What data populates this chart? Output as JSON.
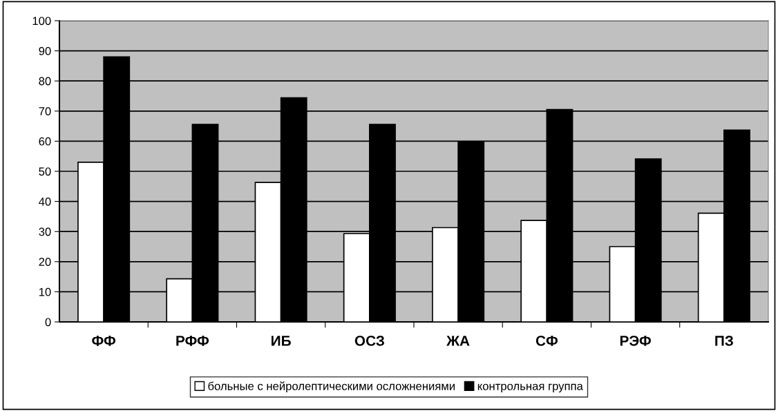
{
  "chart_data": {
    "type": "bar",
    "categories": [
      "ФФ",
      "РФФ",
      "ИБ",
      "ОСЗ",
      "ЖА",
      "СФ",
      "РЭФ",
      "ПЗ"
    ],
    "series": [
      {
        "name": "больные с нейролептическими осложнениями",
        "color": "#ffffff",
        "values": [
          53.0,
          14.3,
          46.3,
          29.3,
          31.3,
          33.7,
          25.0,
          36.1
        ]
      },
      {
        "name": "контрольная группа",
        "color": "#000000",
        "values": [
          88.0,
          65.6,
          74.4,
          65.6,
          59.9,
          70.5,
          54.1,
          63.7
        ]
      }
    ],
    "ylim": [
      0,
      100
    ],
    "yticks": [
      0,
      10,
      20,
      30,
      40,
      50,
      60,
      70,
      80,
      90,
      100
    ],
    "grid": "y",
    "legend": "bottom"
  }
}
